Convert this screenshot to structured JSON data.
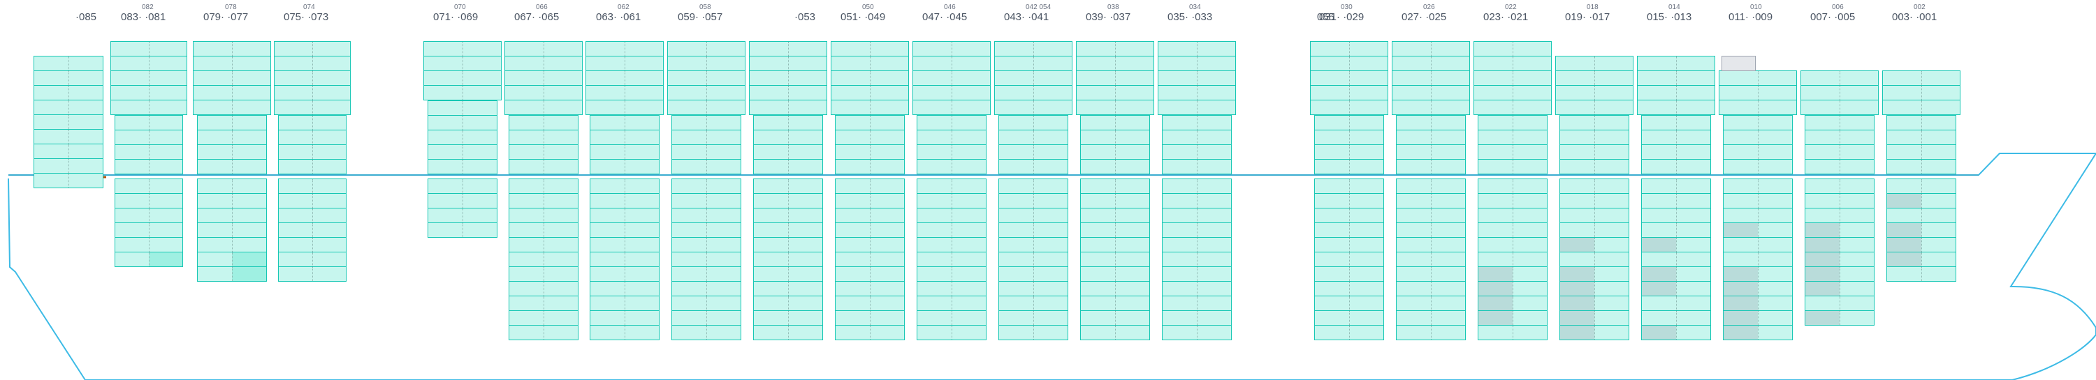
{
  "vessel": {
    "bays": [
      {
        "label": "·085",
        "sub": ""
      },
      {
        "label": "083·   ·081",
        "sub": "082"
      },
      {
        "label": "079·   ·077",
        "sub": "078"
      },
      {
        "label": "075·   ·073",
        "sub": "074"
      },
      {
        "label": "071·   ·069",
        "sub": "070"
      },
      {
        "label": "067·   ·065",
        "sub": "066"
      },
      {
        "label": "063·   ·061",
        "sub": "062"
      },
      {
        "label": "059·   ·057",
        "sub": "058"
      },
      {
        "label": "·053",
        "sub": ""
      },
      {
        "label": "051·   ·049",
        "sub": "050"
      },
      {
        "label": "047·   ·045",
        "sub": "046"
      },
      {
        "label": "043·   ·041",
        "sub": "042     054"
      },
      {
        "label": "039·   ·037",
        "sub": "038"
      },
      {
        "label": "035·   ·033",
        "sub": "034"
      },
      {
        "label": "031·   ·029",
        "sub": "030"
      },
      {
        "label": "055",
        "sub": ""
      },
      {
        "label": "027·   ·025",
        "sub": "026"
      },
      {
        "label": "023·   ·021",
        "sub": "022"
      },
      {
        "label": "019·   ·017",
        "sub": "018"
      },
      {
        "label": "015·   ·013",
        "sub": "014"
      },
      {
        "label": "011·   ·009",
        "sub": "010"
      },
      {
        "label": "007·   ·005",
        "sub": "006"
      },
      {
        "label": "003·   ·001",
        "sub": "002"
      }
    ],
    "colors": {
      "slot_fill": "#c7f6ee",
      "slot_border": "#16c7b4",
      "occupied_fill": "#b9dcda",
      "highlight_fill": "#9ff0e2",
      "hull_line": "#3dbbe6",
      "deck_line": "#3aa7c9",
      "reserved_fill": "#e5e7eb",
      "accent_line": "#b45309"
    }
  }
}
